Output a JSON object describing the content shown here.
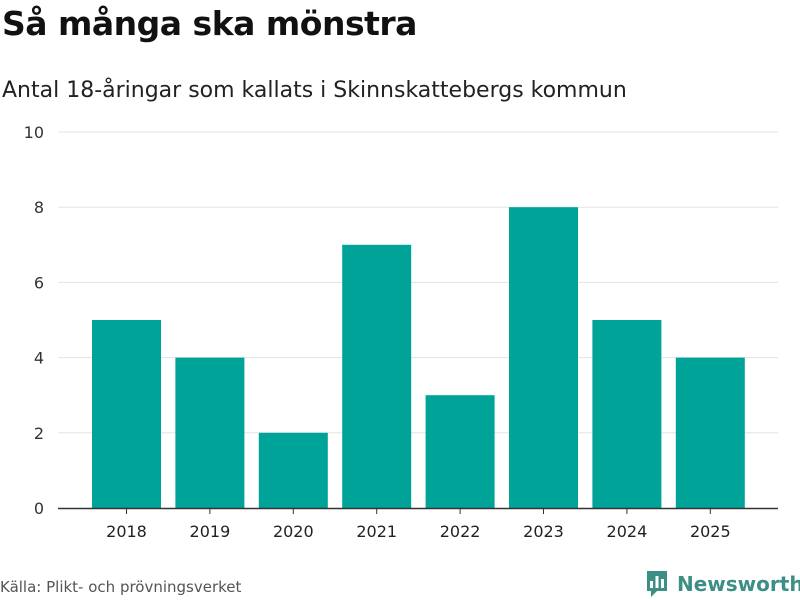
{
  "header": {
    "title": "Så många ska mönstra",
    "subtitle": "Antal 18-åringar som kallats i Skinnskattebergs kommun"
  },
  "chart_data": {
    "type": "bar",
    "title": "Så många ska mönstra",
    "subtitle": "Antal 18-åringar som kallats i Skinnskattebergs kommun",
    "xlabel": "",
    "ylabel": "",
    "categories": [
      "2018",
      "2019",
      "2020",
      "2021",
      "2022",
      "2023",
      "2024",
      "2025"
    ],
    "values": [
      5,
      4,
      2,
      7,
      3,
      8,
      5,
      4
    ],
    "ylim": [
      0,
      10
    ],
    "yticks": [
      0,
      2,
      4,
      6,
      8,
      10
    ],
    "grid": true,
    "legend": "none"
  },
  "colors": {
    "bar": "#00a398",
    "grid": "#e3e3e3",
    "axis": "#333333",
    "brand": "#3d8f86"
  },
  "footer": {
    "source": "Källa: Plikt- och prövningsverket",
    "brand_name": "Newsworthy",
    "brand_icon": "newsworthy-logo-icon"
  }
}
